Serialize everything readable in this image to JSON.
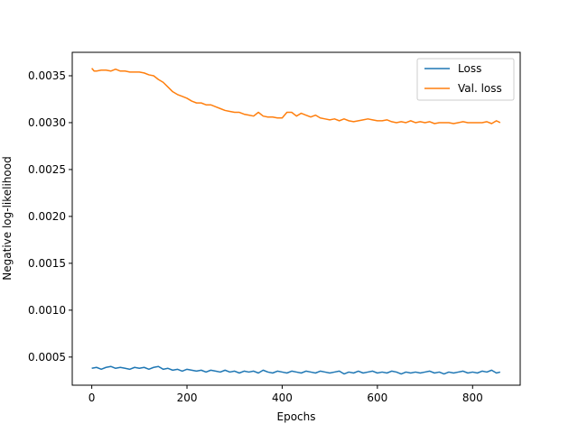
{
  "chart_data": {
    "type": "line",
    "title": "",
    "xlabel": "Epochs",
    "ylabel": "Negative log-likelihood",
    "xlim": [
      -41,
      900
    ],
    "ylim": [
      0.0002,
      0.00375
    ],
    "xticks": [
      0,
      200,
      400,
      600,
      800
    ],
    "xtick_labels": [
      "0",
      "200",
      "400",
      "600",
      "800"
    ],
    "yticks": [
      0.0005,
      0.001,
      0.0015,
      0.002,
      0.0025,
      0.003,
      0.0035
    ],
    "ytick_labels": [
      "0.0005",
      "0.0010",
      "0.0015",
      "0.0020",
      "0.0025",
      "0.0030",
      "0.0035"
    ],
    "grid": false,
    "legend": "top-right",
    "series": [
      {
        "name": "Loss",
        "color": "#1f77b4",
        "x": [
          0,
          10,
          20,
          30,
          40,
          50,
          60,
          70,
          80,
          90,
          100,
          110,
          120,
          130,
          140,
          150,
          160,
          170,
          180,
          190,
          200,
          210,
          220,
          230,
          240,
          250,
          260,
          270,
          280,
          290,
          300,
          310,
          320,
          330,
          340,
          350,
          360,
          370,
          380,
          390,
          400,
          410,
          420,
          430,
          440,
          450,
          460,
          470,
          480,
          490,
          500,
          510,
          520,
          530,
          540,
          550,
          560,
          570,
          580,
          590,
          600,
          610,
          620,
          630,
          640,
          650,
          660,
          670,
          680,
          690,
          700,
          710,
          720,
          730,
          740,
          750,
          760,
          770,
          780,
          790,
          800,
          810,
          820,
          830,
          840,
          850,
          858
        ],
        "values": [
          0.00038,
          0.00039,
          0.00037,
          0.00039,
          0.0004,
          0.00038,
          0.00039,
          0.00038,
          0.00037,
          0.00039,
          0.00038,
          0.00039,
          0.00037,
          0.00039,
          0.0004,
          0.00037,
          0.00038,
          0.00036,
          0.00037,
          0.00035,
          0.00037,
          0.00036,
          0.00035,
          0.00036,
          0.00034,
          0.00036,
          0.00035,
          0.00034,
          0.00036,
          0.00034,
          0.00035,
          0.00033,
          0.00035,
          0.00034,
          0.00035,
          0.00033,
          0.00036,
          0.00034,
          0.00033,
          0.00035,
          0.00034,
          0.00033,
          0.00035,
          0.00034,
          0.00033,
          0.00035,
          0.00034,
          0.00033,
          0.00035,
          0.00034,
          0.00033,
          0.00034,
          0.00035,
          0.00032,
          0.00034,
          0.00033,
          0.00035,
          0.00033,
          0.00034,
          0.00035,
          0.00033,
          0.00034,
          0.00033,
          0.00035,
          0.00034,
          0.00032,
          0.00034,
          0.00033,
          0.00034,
          0.00033,
          0.00034,
          0.00035,
          0.00033,
          0.00034,
          0.00032,
          0.00034,
          0.00033,
          0.00034,
          0.00035,
          0.00033,
          0.00034,
          0.00033,
          0.00035,
          0.00034,
          0.00036,
          0.00033,
          0.00034
        ]
      },
      {
        "name": "Val. loss",
        "color": "#ff7f0e",
        "x": [
          0,
          5,
          10,
          20,
          30,
          40,
          50,
          60,
          70,
          80,
          90,
          100,
          110,
          120,
          130,
          140,
          150,
          160,
          170,
          180,
          190,
          200,
          210,
          220,
          230,
          240,
          250,
          260,
          270,
          280,
          290,
          300,
          310,
          320,
          330,
          340,
          350,
          360,
          370,
          380,
          390,
          400,
          405,
          410,
          420,
          430,
          440,
          450,
          460,
          470,
          480,
          490,
          500,
          510,
          520,
          530,
          540,
          550,
          560,
          570,
          580,
          590,
          600,
          610,
          620,
          630,
          640,
          650,
          660,
          670,
          680,
          690,
          700,
          710,
          720,
          730,
          740,
          750,
          760,
          770,
          780,
          790,
          800,
          810,
          820,
          830,
          840,
          850,
          858
        ],
        "values": [
          0.00358,
          0.00355,
          0.00355,
          0.00356,
          0.00356,
          0.00355,
          0.00357,
          0.00355,
          0.00355,
          0.00354,
          0.00354,
          0.00354,
          0.00353,
          0.00351,
          0.0035,
          0.00346,
          0.00343,
          0.00338,
          0.00333,
          0.0033,
          0.00328,
          0.00326,
          0.00323,
          0.00321,
          0.00321,
          0.00319,
          0.00319,
          0.00317,
          0.00315,
          0.00313,
          0.00312,
          0.00311,
          0.00311,
          0.00309,
          0.00308,
          0.00307,
          0.00311,
          0.00307,
          0.00306,
          0.00306,
          0.00305,
          0.00305,
          0.00308,
          0.00311,
          0.00311,
          0.00307,
          0.0031,
          0.00308,
          0.00306,
          0.00308,
          0.00305,
          0.00304,
          0.00303,
          0.00304,
          0.00302,
          0.00304,
          0.00302,
          0.00301,
          0.00302,
          0.00303,
          0.00304,
          0.00303,
          0.00302,
          0.00302,
          0.00303,
          0.00301,
          0.003,
          0.00301,
          0.003,
          0.00302,
          0.003,
          0.00301,
          0.003,
          0.00301,
          0.00299,
          0.003,
          0.003,
          0.003,
          0.00299,
          0.003,
          0.00301,
          0.003,
          0.003,
          0.003,
          0.003,
          0.00301,
          0.00299,
          0.00302,
          0.003
        ]
      }
    ]
  }
}
